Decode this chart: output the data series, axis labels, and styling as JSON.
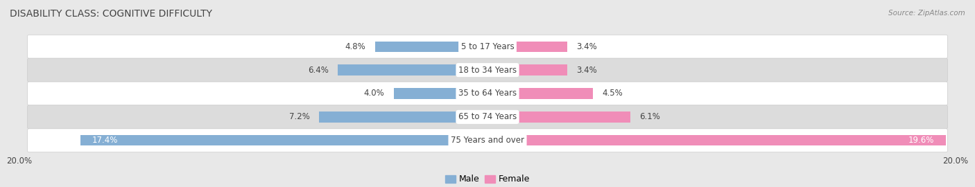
{
  "title": "DISABILITY CLASS: COGNITIVE DIFFICULTY",
  "source": "Source: ZipAtlas.com",
  "categories": [
    "5 to 17 Years",
    "18 to 34 Years",
    "35 to 64 Years",
    "65 to 74 Years",
    "75 Years and over"
  ],
  "male_values": [
    4.8,
    6.4,
    4.0,
    7.2,
    17.4
  ],
  "female_values": [
    3.4,
    3.4,
    4.5,
    6.1,
    19.6
  ],
  "max_val": 20.0,
  "male_color": "#85afd4",
  "female_color": "#f08db8",
  "bg_color": "#e8e8e8",
  "row_bg_odd": "#ffffff",
  "row_bg_even": "#dcdcdc",
  "label_color": "#444444",
  "axis_label_fontsize": 8.5,
  "bar_label_fontsize": 8.5,
  "title_fontsize": 10,
  "legend_fontsize": 9
}
